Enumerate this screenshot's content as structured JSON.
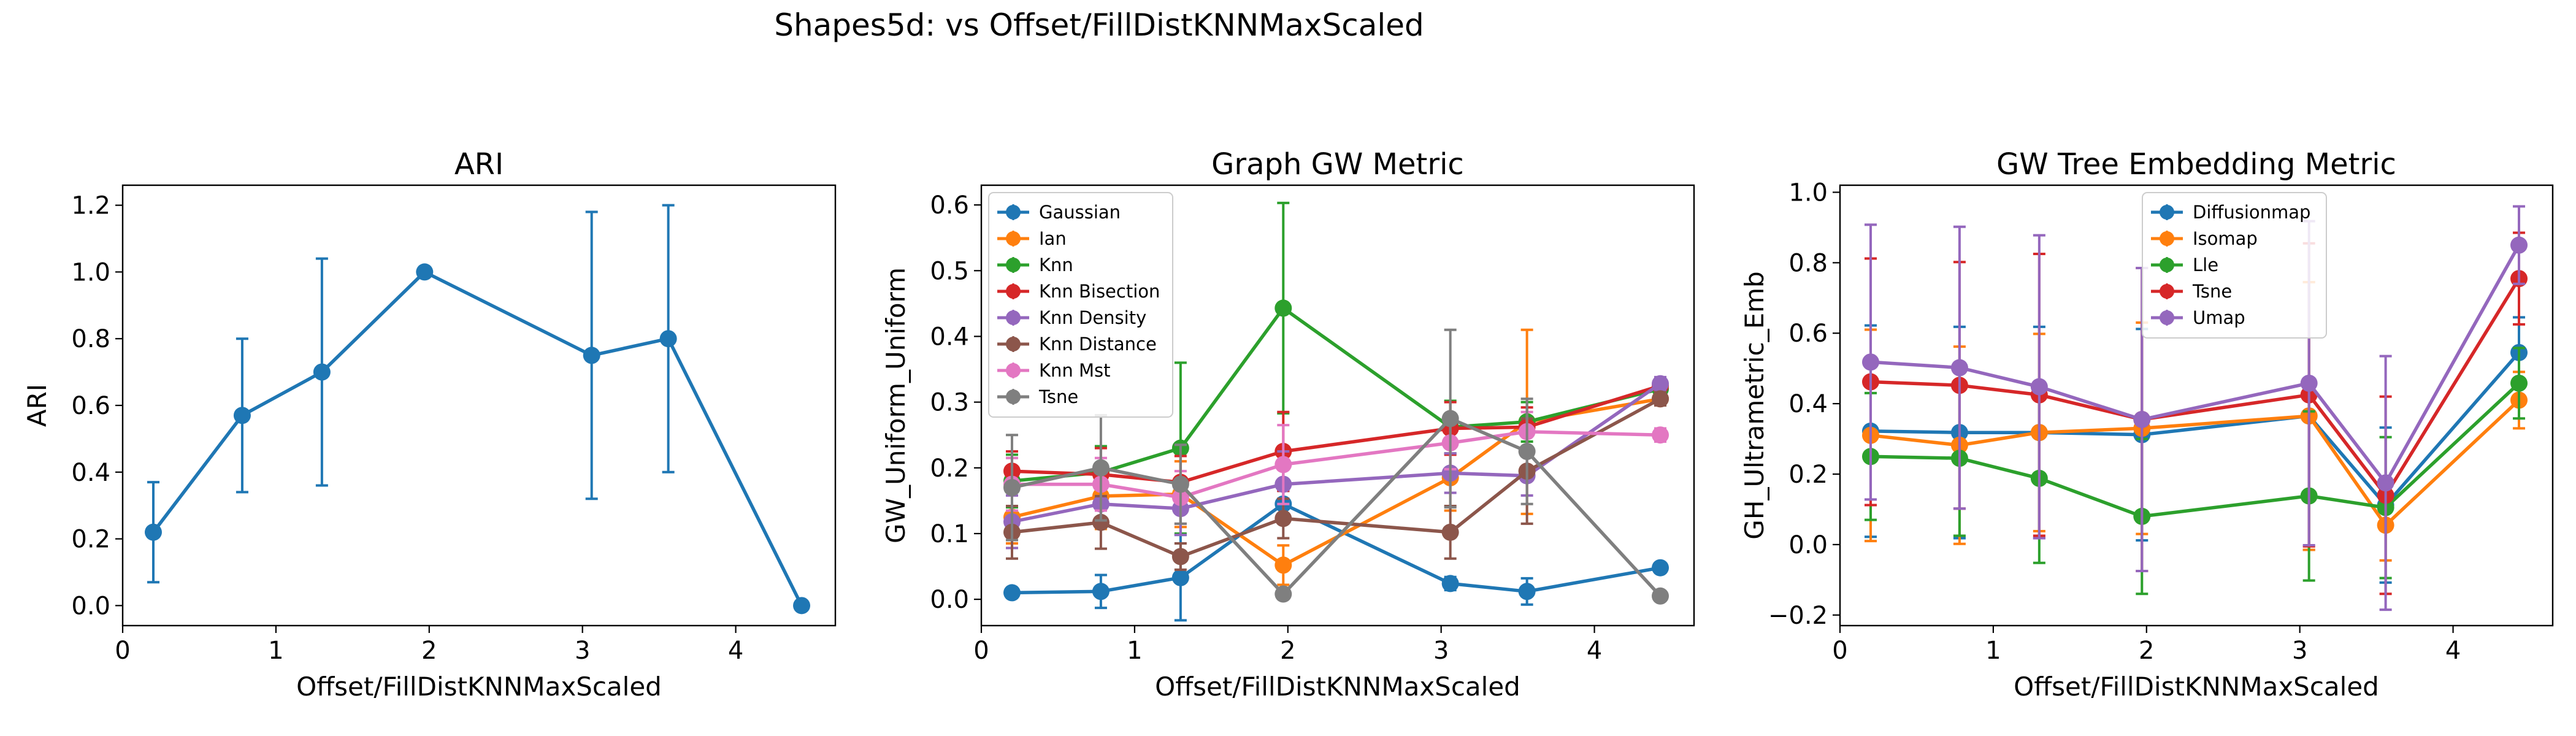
{
  "figure": {
    "suptitle": "Shapes5d: vs Offset/FillDistKNNMaxScaled"
  },
  "chart_data": [
    {
      "type": "line",
      "title": "ARI",
      "xlabel": "Offset/FillDistKNNMaxScaled",
      "ylabel": "ARI",
      "xlim": [
        0,
        4.65
      ],
      "ylim": [
        -0.06,
        1.26
      ],
      "xticks": [
        0,
        1,
        2,
        3,
        4
      ],
      "yticks": [
        0.0,
        0.2,
        0.4,
        0.6,
        0.8,
        1.0,
        1.2
      ],
      "ytick_labels": [
        "0.0",
        "0.2",
        "0.4",
        "0.6",
        "0.8",
        "1.0",
        "1.2"
      ],
      "grid": false,
      "legend": null,
      "x": [
        0.2,
        0.78,
        1.3,
        1.97,
        3.06,
        3.56,
        4.43
      ],
      "series": [
        {
          "color": "#1f77b4",
          "values": [
            0.22,
            0.57,
            0.7,
            1.0,
            0.75,
            0.8,
            0.0
          ],
          "errors": [
            0.15,
            0.23,
            0.34,
            0.0,
            0.43,
            0.4,
            0.0
          ]
        }
      ]
    },
    {
      "type": "line",
      "title": "Graph GW Metric",
      "xlabel": "Offset/FillDistKNNMaxScaled",
      "ylabel": "GW_Uniform_Uniform",
      "xlim": [
        0,
        4.65
      ],
      "ylim": [
        -0.04,
        0.63
      ],
      "xticks": [
        0,
        1,
        2,
        3,
        4
      ],
      "yticks": [
        0.0,
        0.1,
        0.2,
        0.3,
        0.4,
        0.5,
        0.6
      ],
      "ytick_labels": [
        "0.0",
        "0.1",
        "0.2",
        "0.3",
        "0.4",
        "0.5",
        "0.6"
      ],
      "grid": false,
      "legend": "upper-left",
      "x": [
        0.2,
        0.78,
        1.3,
        1.97,
        3.06,
        3.56,
        4.43
      ],
      "series": [
        {
          "name": "Gaussian",
          "color": "#1f77b4",
          "values": [
            0.01,
            0.012,
            0.033,
            0.145,
            0.024,
            0.012,
            0.048
          ],
          "errors": [
            0.005,
            0.025,
            0.065,
            0.02,
            0.01,
            0.02,
            0.005
          ]
        },
        {
          "name": "Ian",
          "color": "#ff7f0e",
          "values": [
            0.125,
            0.157,
            0.16,
            0.052,
            0.185,
            0.27,
            0.305
          ],
          "errors": [
            0.04,
            0.05,
            0.05,
            0.03,
            0.05,
            0.14,
            0.01
          ]
        },
        {
          "name": "Knn",
          "color": "#2ca02c",
          "values": [
            0.18,
            0.193,
            0.23,
            0.443,
            0.262,
            0.27,
            0.32
          ],
          "errors": [
            0.04,
            0.04,
            0.13,
            0.16,
            0.04,
            0.03,
            0.01
          ]
        },
        {
          "name": "Knn Bisection",
          "color": "#d62728",
          "values": [
            0.195,
            0.19,
            0.178,
            0.225,
            0.26,
            0.262,
            0.325
          ],
          "errors": [
            0.03,
            0.04,
            0.04,
            0.06,
            0.04,
            0.03,
            0.01
          ]
        },
        {
          "name": "Knn Density",
          "color": "#9467bd",
          "values": [
            0.118,
            0.145,
            0.138,
            0.175,
            0.192,
            0.188,
            0.328
          ],
          "errors": [
            0.04,
            0.03,
            0.04,
            0.05,
            0.03,
            0.03,
            0.01
          ]
        },
        {
          "name": "Knn Distance",
          "color": "#8c564b",
          "values": [
            0.102,
            0.117,
            0.065,
            0.123,
            0.102,
            0.195,
            0.305
          ],
          "errors": [
            0.04,
            0.04,
            0.02,
            0.03,
            0.04,
            0.08,
            0.01
          ]
        },
        {
          "name": "Knn Mst",
          "color": "#e377c2",
          "values": [
            0.175,
            0.175,
            0.155,
            0.205,
            0.238,
            0.255,
            0.25
          ],
          "errors": [
            0.04,
            0.04,
            0.04,
            0.06,
            0.04,
            0.03,
            0.01
          ]
        },
        {
          "name": "Tsne",
          "color": "#7f7f7f",
          "values": [
            0.17,
            0.2,
            0.175,
            0.008,
            0.275,
            0.225,
            0.005
          ],
          "errors": [
            0.08,
            0.08,
            0.06,
            0.005,
            0.135,
            0.08,
            0.005
          ]
        }
      ]
    },
    {
      "type": "line",
      "title": "GW Tree Embedding Metric",
      "xlabel": "Offset/FillDistKNNMaxScaled",
      "ylabel": "GH_Ultrametric_Emb",
      "xlim": [
        0,
        4.65
      ],
      "ylim": [
        -0.23,
        1.02
      ],
      "xticks": [
        0,
        1,
        2,
        3,
        4
      ],
      "yticks": [
        -0.2,
        0.0,
        0.2,
        0.4,
        0.6,
        0.8,
        1.0
      ],
      "ytick_labels": [
        "−0.2",
        "0.0",
        "0.2",
        "0.4",
        "0.6",
        "0.8",
        "1.0"
      ],
      "grid": false,
      "legend": "upper-center",
      "x": [
        0.2,
        0.78,
        1.3,
        1.97,
        3.06,
        3.56,
        4.43
      ],
      "series": [
        {
          "name": "Diffusionmap",
          "color": "#1f77b4",
          "values": [
            0.322,
            0.318,
            0.318,
            0.312,
            0.365,
            0.112,
            0.545
          ],
          "errors": [
            0.3,
            0.3,
            0.3,
            0.3,
            0.38,
            0.22,
            0.1
          ]
        },
        {
          "name": "Isomap",
          "color": "#ff7f0e",
          "values": [
            0.31,
            0.282,
            0.318,
            0.33,
            0.365,
            0.055,
            0.41
          ],
          "errors": [
            0.3,
            0.28,
            0.28,
            0.3,
            0.38,
            0.1,
            0.08
          ]
        },
        {
          "name": "Lle",
          "color": "#2ca02c",
          "values": [
            0.25,
            0.245,
            0.188,
            0.08,
            0.138,
            0.105,
            0.458
          ],
          "errors": [
            0.18,
            0.22,
            0.24,
            0.22,
            0.24,
            0.2,
            0.1
          ]
        },
        {
          "name": "Tsne",
          "color": "#d62728",
          "values": [
            0.462,
            0.452,
            0.425,
            0.355,
            0.425,
            0.14,
            0.755
          ],
          "errors": [
            0.35,
            0.35,
            0.4,
            0.43,
            0.43,
            0.28,
            0.13
          ]
        },
        {
          "name": "Umap",
          "color": "#9467bd",
          "values": [
            0.518,
            0.502,
            0.448,
            0.355,
            0.458,
            0.175,
            0.85
          ],
          "errors": [
            0.39,
            0.4,
            0.43,
            0.43,
            0.46,
            0.36,
            0.11
          ]
        }
      ]
    }
  ]
}
